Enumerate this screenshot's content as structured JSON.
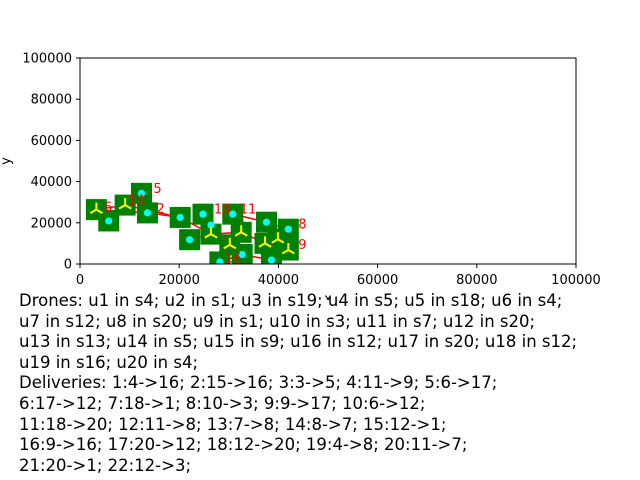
{
  "chart_data": {
    "type": "scatter",
    "title": "",
    "xlabel": "x",
    "ylabel": "y",
    "xlim": [
      0,
      100000
    ],
    "ylim": [
      0,
      100000
    ],
    "xticks": [
      "0",
      "20000",
      "40000",
      "60000",
      "80000",
      "100000"
    ],
    "yticks": [
      "0",
      "20000",
      "40000",
      "60000",
      "80000",
      "100000"
    ],
    "grid": false,
    "colors": {
      "station_fill": "#008000",
      "route": "#ff0000",
      "customer_marker": "#00ffff",
      "drone_marker": "#ffff00",
      "label": "#ff0000"
    },
    "stations": [
      {
        "id": "1",
        "x": 38600,
        "y": 1900
      },
      {
        "id": "2",
        "x": 13600,
        "y": 24800
      },
      {
        "id": "3",
        "x": 32500,
        "y": 15400
      },
      {
        "id": "4",
        "x": 3300,
        "y": 26400
      },
      {
        "id": "5",
        "x": 12400,
        "y": 34300
      },
      {
        "id": "6",
        "x": 5800,
        "y": 20900
      },
      {
        "id": "7",
        "x": 22100,
        "y": 11800
      },
      {
        "id": "8",
        "x": 42000,
        "y": 16900
      },
      {
        "id": "9",
        "x": 42000,
        "y": 6800
      },
      {
        "id": "10",
        "x": 24800,
        "y": 24200
      },
      {
        "id": "11",
        "x": 30800,
        "y": 24200
      },
      {
        "id": "12",
        "x": 37300,
        "y": 10000
      },
      {
        "id": "13",
        "x": 30200,
        "y": 9300
      },
      {
        "id": "14",
        "x": 9100,
        "y": 28600
      },
      {
        "id": "15",
        "x": 32700,
        "y": 4600
      },
      {
        "id": "16",
        "x": 28200,
        "y": 1000
      },
      {
        "id": "17",
        "x": 26400,
        "y": 14500
      },
      {
        "id": "18",
        "x": 37600,
        "y": 20300
      },
      {
        "id": "19",
        "x": 39900,
        "y": 12000
      },
      {
        "id": "20",
        "x": 20200,
        "y": 22600
      }
    ],
    "visible_labels": [
      {
        "text": "6",
        "x": 4400,
        "y": 26400
      },
      {
        "text": "14",
        "x": 9300,
        "y": 29800
      },
      {
        "text": "5",
        "x": 14400,
        "y": 35500
      },
      {
        "text": "2",
        "x": 15000,
        "y": 25800
      },
      {
        "text": "10",
        "x": 26600,
        "y": 25400
      },
      {
        "text": "11",
        "x": 31800,
        "y": 25600
      },
      {
        "text": "8",
        "x": 43600,
        "y": 18200
      },
      {
        "text": "9",
        "x": 43600,
        "y": 8200
      },
      {
        "text": "16",
        "x": 28800,
        "y": 1800
      }
    ],
    "routes": [
      [
        3300,
        26400,
        13600,
        24800
      ],
      [
        3300,
        26400,
        9100,
        28600
      ],
      [
        13600,
        24800,
        20200,
        22600
      ],
      [
        9100,
        28600,
        20200,
        22600
      ],
      [
        20200,
        22600,
        26400,
        14500
      ],
      [
        26400,
        14500,
        32500,
        15400
      ],
      [
        32500,
        15400,
        37300,
        10000
      ],
      [
        37300,
        10000,
        42000,
        6800
      ],
      [
        42000,
        6800,
        38600,
        1900
      ],
      [
        37300,
        10000,
        42000,
        16900
      ],
      [
        42000,
        16900,
        37600,
        20300
      ],
      [
        37600,
        20300,
        30800,
        24200
      ],
      [
        30200,
        9300,
        32700,
        4600
      ],
      [
        32700,
        4600,
        38600,
        1900
      ],
      [
        28200,
        1000,
        32700,
        4600
      ],
      [
        22100,
        11800,
        26400,
        14500
      ],
      [
        24800,
        24200,
        26400,
        14500
      ],
      [
        39900,
        12000,
        37600,
        20300
      ]
    ],
    "customer_points": [
      {
        "x": 5800,
        "y": 20900
      },
      {
        "x": 12400,
        "y": 34300
      },
      {
        "x": 13600,
        "y": 24800
      },
      {
        "x": 20200,
        "y": 22600
      },
      {
        "x": 24800,
        "y": 24200
      },
      {
        "x": 30800,
        "y": 24200
      },
      {
        "x": 22100,
        "y": 11800
      },
      {
        "x": 26400,
        "y": 18900
      },
      {
        "x": 32700,
        "y": 4600
      },
      {
        "x": 37600,
        "y": 20300
      },
      {
        "x": 42000,
        "y": 16900
      },
      {
        "x": 38600,
        "y": 1900
      },
      {
        "x": 28200,
        "y": 1000
      }
    ],
    "drone_points": [
      {
        "x": 3300,
        "y": 26400
      },
      {
        "x": 9100,
        "y": 28600
      },
      {
        "x": 30200,
        "y": 9300
      },
      {
        "x": 32500,
        "y": 15400
      },
      {
        "x": 37300,
        "y": 10000
      },
      {
        "x": 39900,
        "y": 12000
      },
      {
        "x": 42000,
        "y": 6800
      },
      {
        "x": 26400,
        "y": 14500
      }
    ]
  },
  "caption": "Drones: u1 in s4; u2 in s1; u3 in s19; u4 in s5; u5 in s18; u6 in s4;\nu7 in s12; u8 in s20; u9 in s1; u10 in s3; u11 in s7; u12 in s20;\nu13 in s13; u14 in s5; u15 in s9; u16 in s12; u17 in s20; u18 in s12;\nu19 in s16; u20 in s4;\nDeliveries: 1:4->16; 2:15->16; 3:3->5; 4:11->9; 5:6->17;\n6:17->12; 7:18->1; 8:10->3; 9:9->17; 10:6->12;\n11:18->20; 12:11->8; 13:7->8; 14:8->7; 15:12->1;\n16:9->16; 17:20->12; 18:12->20; 19:4->8; 20:11->7;\n21:20->1; 22:12->3;"
}
